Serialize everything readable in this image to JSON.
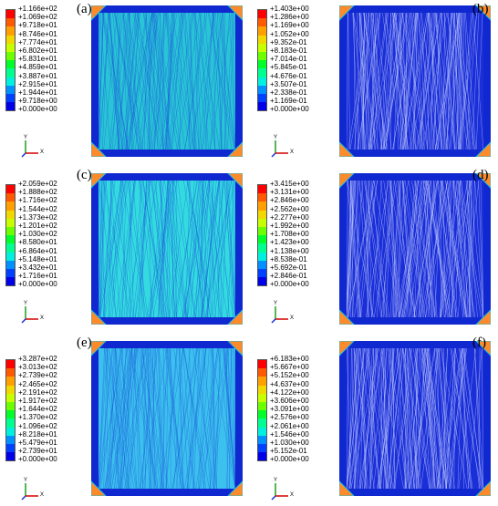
{
  "panels": [
    {
      "id": "a",
      "label": "(a)",
      "legend": [
        "+1.166e+02",
        "+1.069e+02",
        "+9.718e+01",
        "+8.746e+01",
        "+7.774e+01",
        "+6.802e+01",
        "+5.831e+01",
        "+4.859e+01",
        "+3.887e+01",
        "+2.915e+01",
        "+1.944e+01",
        "+9.718e+00",
        "+0.000e+00"
      ],
      "fill": "#29c4d6"
    },
    {
      "id": "b",
      "label": "(b)",
      "legend": [
        "+1.403e+00",
        "+1.286e+00",
        "+1.169e+00",
        "+1.052e+00",
        "+9.352e-01",
        "+8.183e-01",
        "+7.014e-01",
        "+5.845e-01",
        "+4.676e-01",
        "+3.507e-01",
        "+2.338e-01",
        "+1.169e-01",
        "+0.000e+00"
      ],
      "fill": "#1a2fd8"
    },
    {
      "id": "c",
      "label": "(c)",
      "legend": [
        "+2.059e+02",
        "+1.888e+02",
        "+1.716e+02",
        "+1.544e+02",
        "+1.373e+02",
        "+1.201e+02",
        "+1.030e+02",
        "+8.580e+01",
        "+6.864e+01",
        "+5.148e+01",
        "+3.432e+01",
        "+1.716e+01",
        "+0.000e+00"
      ],
      "fill": "#33dbe0"
    },
    {
      "id": "d",
      "label": "(d)",
      "legend": [
        "+3.415e+00",
        "+3.131e+00",
        "+2.846e+00",
        "+2.562e+00",
        "+2.277e+00",
        "+1.992e+00",
        "+1.708e+00",
        "+1.423e+00",
        "+1.138e+00",
        "+8.538e-01",
        "+5.692e-01",
        "+2.846e-01",
        "+0.000e+00"
      ],
      "fill": "#1a2fd8"
    },
    {
      "id": "e",
      "label": "(e)",
      "legend": [
        "+3.287e+02",
        "+3.013e+02",
        "+2.739e+02",
        "+2.465e+02",
        "+2.191e+02",
        "+1.917e+02",
        "+1.644e+02",
        "+1.370e+02",
        "+1.096e+02",
        "+8.218e+01",
        "+5.479e+01",
        "+2.739e+01",
        "+0.000e+00"
      ],
      "fill": "#3cc0ee"
    },
    {
      "id": "f",
      "label": "(f)",
      "legend": [
        "+6.183e+00",
        "+5.667e+00",
        "+5.152e+00",
        "+4.637e+00",
        "+4.122e+00",
        "+3.606e+00",
        "+3.091e+00",
        "+2.576e+00",
        "+2.061e+00",
        "+1.546e+00",
        "+1.030e+00",
        "+5.152e-01",
        "+0.000e+00"
      ],
      "fill": "#1a2fd8"
    }
  ],
  "axis_labels": {
    "y": "Y",
    "x": "X",
    "z": "Z"
  },
  "colors": {
    "scale": [
      "#ff0000",
      "#ff5a00",
      "#ffa000",
      "#f0d800",
      "#c8ff00",
      "#6cff00",
      "#00ff2a",
      "#00ff90",
      "#00f0e0",
      "#0090ff",
      "#0040ff",
      "#0000e8"
    ]
  }
}
